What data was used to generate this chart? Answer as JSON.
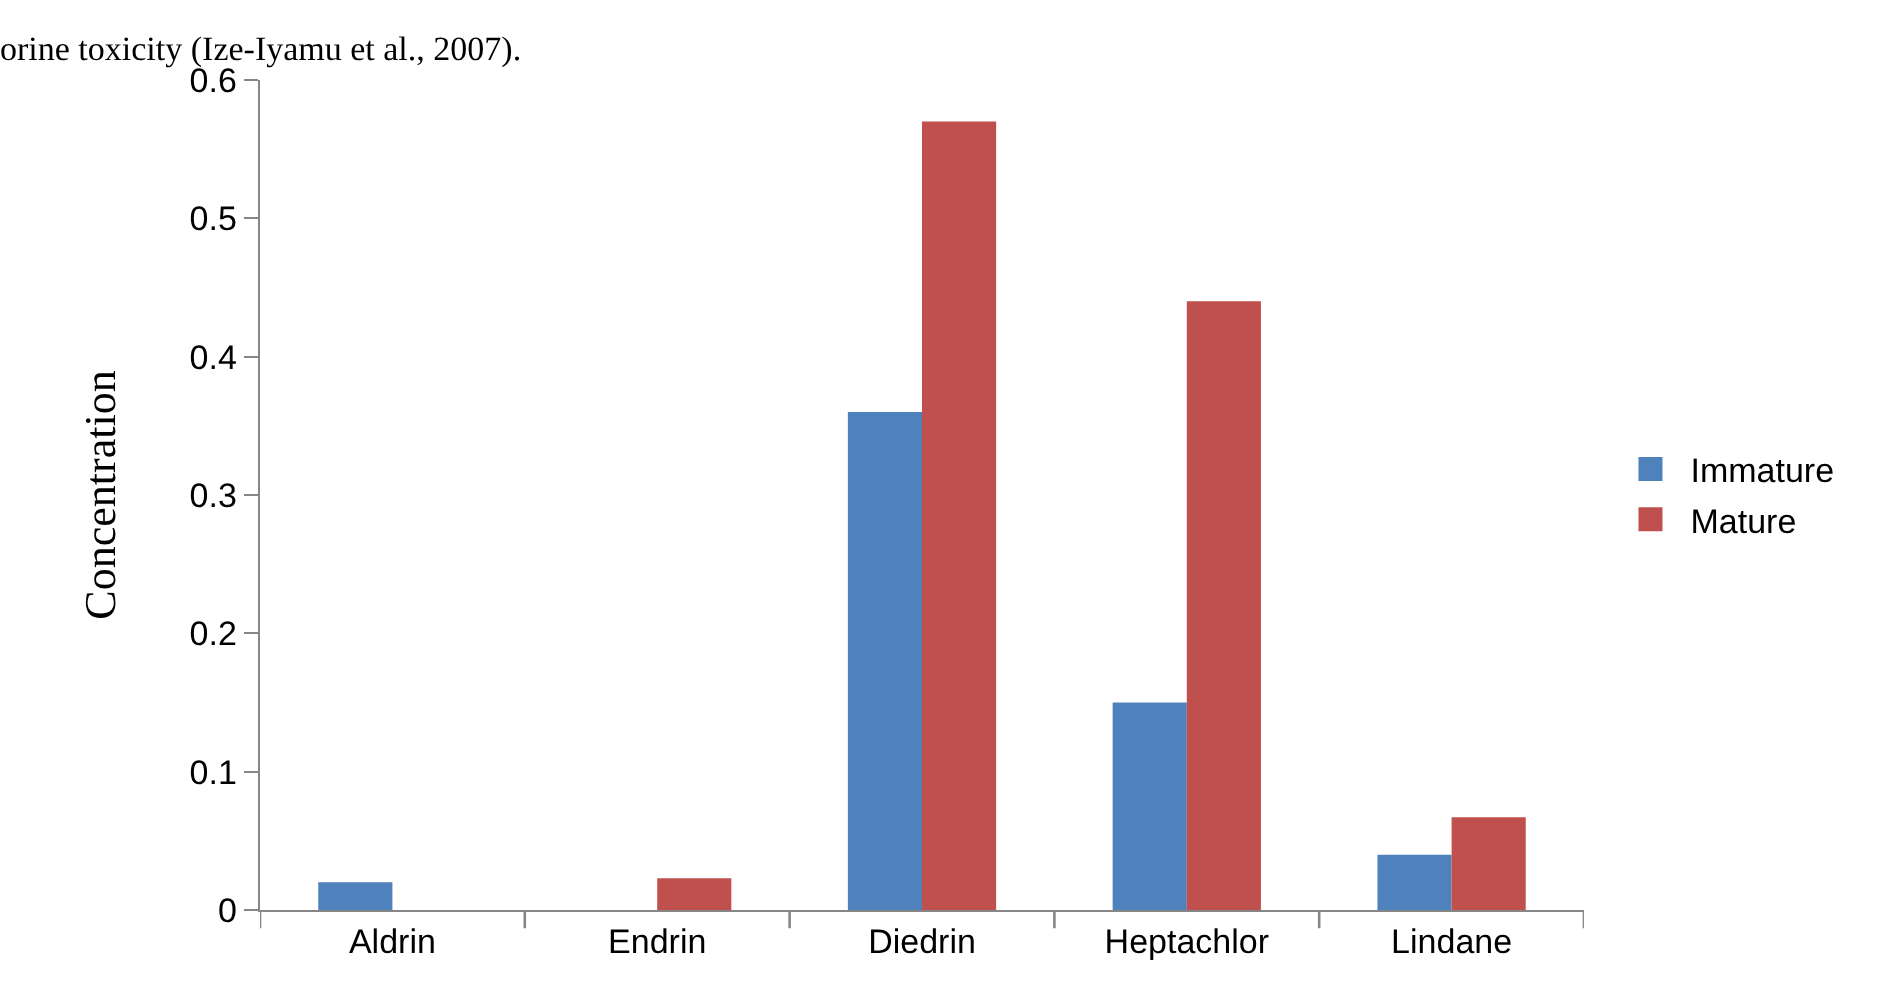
{
  "chart_data": {
    "type": "bar",
    "ylabel": "Concentration",
    "annotations": [
      "orine toxicity (Ize-Iyamu et al., 2007)."
    ],
    "categories": [
      "Aldrin",
      "Endrin",
      "Diedrin",
      "Heptachlor",
      "Lindane"
    ],
    "series": [
      {
        "name": "Immature",
        "color": "#4f81bd",
        "values": [
          0.02,
          0,
          0.36,
          0.15,
          0.04
        ]
      },
      {
        "name": "Mature",
        "color": "#c0504d",
        "values": [
          0,
          0.023,
          0.57,
          0.44,
          0.067
        ]
      }
    ],
    "ylim": [
      0,
      0.6
    ],
    "yticks": [
      0,
      0.1,
      0.2,
      0.3,
      0.4,
      0.5,
      0.6
    ],
    "grid": false,
    "legend": "right"
  }
}
